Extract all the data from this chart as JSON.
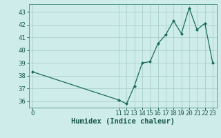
{
  "title": "",
  "xlabel": "Humidex (Indice chaleur)",
  "x_data": [
    0,
    11,
    12,
    13,
    14,
    15,
    16,
    17,
    18,
    19,
    20,
    21,
    22,
    23
  ],
  "y_data": [
    38.3,
    36.1,
    35.8,
    37.2,
    39.0,
    39.1,
    40.5,
    41.2,
    42.3,
    41.3,
    43.3,
    41.6,
    42.1,
    39.0
  ],
  "line_color": "#1a6b5a",
  "marker_color": "#1a6b5a",
  "bg_color": "#ceecea",
  "grid_color": "#aacfcc",
  "ylim": [
    35.5,
    43.6
  ],
  "yticks": [
    36,
    37,
    38,
    39,
    40,
    41,
    42,
    43
  ],
  "xlim": [
    -0.5,
    23.5
  ],
  "xticks": [
    0,
    11,
    12,
    13,
    14,
    15,
    16,
    17,
    18,
    19,
    20,
    21,
    22,
    23
  ],
  "tick_fontsize": 6.5,
  "label_fontsize": 7.5
}
